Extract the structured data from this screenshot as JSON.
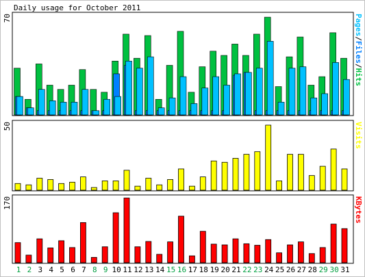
{
  "title": "Daily usage for October 2011",
  "colors": {
    "background": "#ffffff",
    "hits": "#00c040",
    "files": "#0080ff",
    "pages": "#00c0ff",
    "visits": "#ffff00",
    "kbytes": "#ff0000",
    "weekend_day": "#00a040",
    "weekday": "#000000",
    "frame": "#000000"
  },
  "chart_data": [
    {
      "type": "bar",
      "panel": "hits-files-pages",
      "title": "Daily usage for October 2011",
      "ylabel_parts": [
        {
          "text": "Pages",
          "color": "#00c0ff"
        },
        {
          "text": "/",
          "color": "#000000"
        },
        {
          "text": "Files",
          "color": "#0080ff"
        },
        {
          "text": "/",
          "color": "#000000"
        },
        {
          "text": "Hits",
          "color": "#00c040"
        }
      ],
      "ymax_label": "70",
      "ylim": [
        0,
        70
      ],
      "categories": [
        "1",
        "2",
        "3",
        "4",
        "5",
        "6",
        "7",
        "8",
        "9",
        "10",
        "11",
        "12",
        "13",
        "14",
        "15",
        "16",
        "17",
        "18",
        "19",
        "20",
        "21",
        "22",
        "23",
        "24",
        "25",
        "26",
        "27",
        "28",
        "29",
        "30",
        "31"
      ],
      "weekend_days": [
        "1",
        "2",
        "8",
        "9",
        "15",
        "16",
        "22",
        "23",
        "29",
        "30"
      ],
      "series": [
        {
          "name": "Hits",
          "color": "#00c040",
          "values": [
            33,
            11,
            36,
            21,
            18,
            21,
            32,
            18,
            16,
            38,
            57,
            40,
            56,
            11,
            35,
            59,
            16,
            34,
            45,
            42,
            50,
            42,
            57,
            69,
            20,
            41,
            55,
            21,
            27,
            58,
            40
          ]
        },
        {
          "name": "Files",
          "color": "#0080ff",
          "values": [
            13,
            5,
            3,
            3,
            3,
            3,
            3,
            3,
            3,
            29,
            35,
            3,
            3,
            3,
            3,
            3,
            3,
            3,
            3,
            3,
            28,
            30,
            3,
            3,
            3,
            3,
            3,
            3,
            3,
            3,
            3
          ]
        },
        {
          "name": "Pages",
          "color": "#00c0ff",
          "values": [
            13,
            5,
            18,
            10,
            9,
            9,
            18,
            3,
            11,
            13,
            38,
            33,
            41,
            5,
            12,
            27,
            8,
            19,
            27,
            21,
            29,
            30,
            33,
            52,
            9,
            33,
            34,
            12,
            15,
            37,
            25
          ]
        }
      ]
    },
    {
      "type": "bar",
      "panel": "visits",
      "ylabel": "Visits",
      "ymax_label": "50",
      "ylim": [
        0,
        50
      ],
      "categories": [
        "1",
        "2",
        "3",
        "4",
        "5",
        "6",
        "7",
        "8",
        "9",
        "10",
        "11",
        "12",
        "13",
        "14",
        "15",
        "16",
        "17",
        "18",
        "19",
        "20",
        "21",
        "22",
        "23",
        "24",
        "25",
        "26",
        "27",
        "28",
        "29",
        "30",
        "31"
      ],
      "series": [
        {
          "name": "Visits",
          "color": "#ffff00",
          "values": [
            5,
            4,
            9,
            8,
            5,
            6,
            10,
            2,
            7,
            7,
            15,
            3,
            9,
            4,
            8,
            16,
            3,
            10,
            22,
            21,
            24,
            27,
            29,
            49,
            7,
            27,
            27,
            11,
            18,
            31,
            16
          ]
        }
      ]
    },
    {
      "type": "bar",
      "panel": "kbytes",
      "ylabel": "KBytes",
      "ymax_label": "170",
      "ylim": [
        0,
        170
      ],
      "categories": [
        "1",
        "2",
        "3",
        "4",
        "5",
        "6",
        "7",
        "8",
        "9",
        "10",
        "11",
        "12",
        "13",
        "14",
        "15",
        "16",
        "17",
        "18",
        "19",
        "20",
        "21",
        "22",
        "23",
        "24",
        "25",
        "26",
        "27",
        "28",
        "29",
        "30",
        "31"
      ],
      "series": [
        {
          "name": "KBytes",
          "color": "#ff0000",
          "values": [
            53,
            20,
            63,
            39,
            58,
            40,
            106,
            14,
            42,
            132,
            171,
            42,
            56,
            22,
            55,
            123,
            18,
            83,
            49,
            47,
            63,
            50,
            46,
            61,
            26,
            47,
            55,
            24,
            40,
            102,
            90
          ]
        }
      ]
    }
  ]
}
